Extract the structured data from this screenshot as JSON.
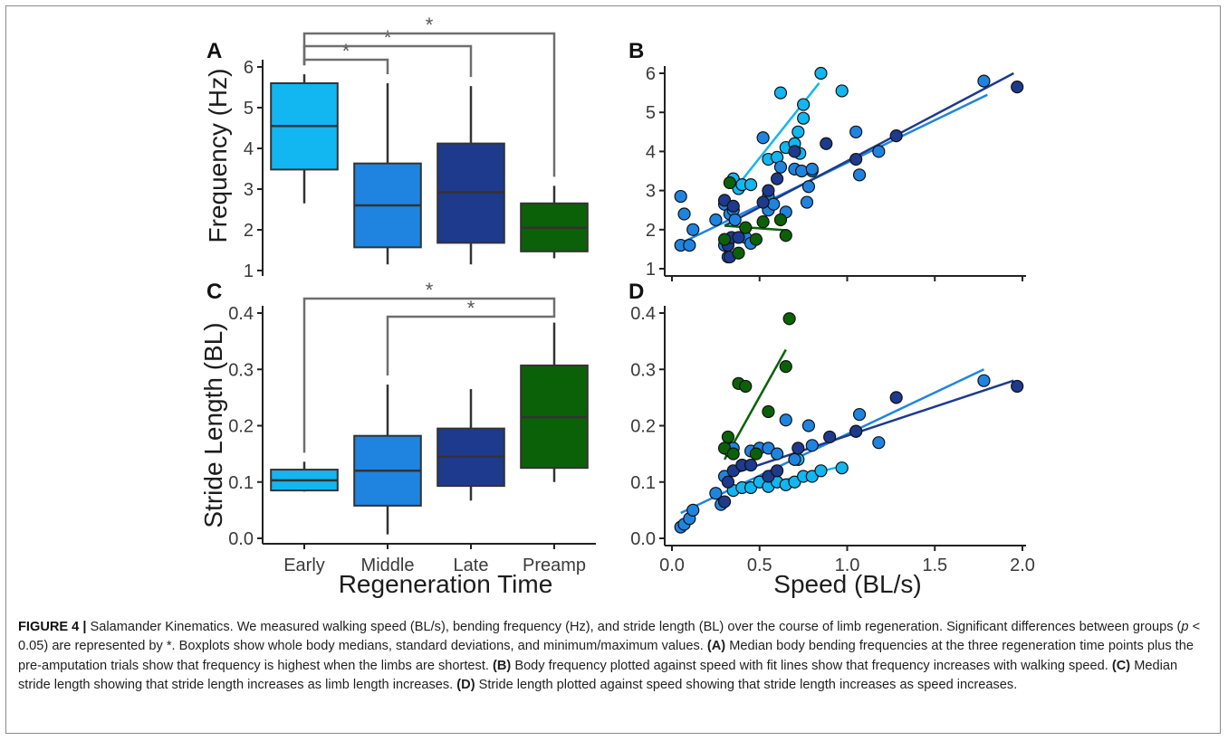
{
  "colors": {
    "early": "#12b6f0",
    "middle": "#1f84e0",
    "late": "#1d3a8c",
    "preamp": "#0b6108",
    "bracket": "#6e6e6e"
  },
  "figure": {
    "panels": {
      "a": "A",
      "b": "B",
      "c": "C",
      "d": "D"
    },
    "left_ylabel_top": "Frequency (Hz)",
    "left_ylabel_bottom": "Stride Length (BL)",
    "left_xlabel": "Regeneration Time",
    "right_xlabel": "Speed (BL/s)",
    "significance_marker": "*"
  },
  "caption": {
    "label": "FIGURE 4 |",
    "text_intro": "Salamander Kinematics. We measured walking speed (BL/s), bending frequency (Hz), and stride length (BL) over the course of limb regeneration. Significant differences between groups (",
    "text_p": "p",
    "text_sig": " < 0.05) are represented by *. Boxplots show whole body medians, standard deviations, and minimum/maximum values. ",
    "a_label": "(A)",
    "a_text": " Median body bending frequencies at the three regeneration time points plus the pre-amputation trials show that frequency is highest when the limbs are shortest. ",
    "b_label": "(B)",
    "b_text": " Body frequency plotted against speed with fit lines show that frequency increases with walking speed. ",
    "c_label": "(C)",
    "c_text": " Median stride length showing that stride length increases as limb length increases. ",
    "d_label": "(D)",
    "d_text": " Stride length plotted against speed showing that stride length increases as speed increases."
  },
  "chart_data": [
    {
      "panel": "A",
      "type": "box",
      "categories": [
        "Early",
        "Middle",
        "Late",
        "Preamp"
      ],
      "ylabel": "Frequency (Hz)",
      "ylim": [
        1,
        6
      ],
      "yticks": [
        "1",
        "2",
        "3",
        "4",
        "5",
        "6"
      ],
      "boxes": [
        {
          "name": "Early",
          "min": 2.65,
          "q1": 3.48,
          "median": 4.55,
          "q3": 5.6,
          "max": 5.82,
          "color": "#12b6f0"
        },
        {
          "name": "Middle",
          "min": 1.15,
          "q1": 1.57,
          "median": 2.6,
          "q3": 3.63,
          "max": 5.6,
          "color": "#1f84e0"
        },
        {
          "name": "Late",
          "min": 1.15,
          "q1": 1.68,
          "median": 2.92,
          "q3": 4.12,
          "max": 5.53,
          "color": "#1d3a8c"
        },
        {
          "name": "Preamp",
          "min": 1.3,
          "q1": 1.47,
          "median": 2.05,
          "q3": 2.65,
          "max": 3.08,
          "color": "#0b6108"
        }
      ],
      "significance": [
        {
          "from": "Early",
          "to": "Middle",
          "label": "*"
        },
        {
          "from": "Early",
          "to": "Late",
          "label": "*"
        },
        {
          "from": "Early",
          "to": "Preamp",
          "label": "*"
        }
      ]
    },
    {
      "panel": "C",
      "type": "box",
      "categories": [
        "Early",
        "Middle",
        "Late",
        "Preamp"
      ],
      "xlabel": "Regeneration Time",
      "ylabel": "Stride Length (BL)",
      "ylim": [
        0,
        0.4
      ],
      "yticks": [
        "0.0",
        "0.1",
        "0.2",
        "0.3",
        "0.4"
      ],
      "boxes": [
        {
          "name": "Early",
          "min": 0.083,
          "q1": 0.085,
          "median": 0.103,
          "q3": 0.122,
          "max": 0.136,
          "color": "#12b6f0"
        },
        {
          "name": "Middle",
          "min": 0.007,
          "q1": 0.058,
          "median": 0.12,
          "q3": 0.182,
          "max": 0.273,
          "color": "#1f84e0"
        },
        {
          "name": "Late",
          "min": 0.067,
          "q1": 0.093,
          "median": 0.145,
          "q3": 0.195,
          "max": 0.265,
          "color": "#1d3a8c"
        },
        {
          "name": "Preamp",
          "min": 0.1,
          "q1": 0.125,
          "median": 0.215,
          "q3": 0.307,
          "max": 0.383,
          "color": "#0b6108"
        }
      ],
      "significance": [
        {
          "from": "Early",
          "to": "Preamp",
          "label": "*"
        },
        {
          "from": "Middle",
          "to": "Preamp",
          "label": "*"
        }
      ]
    },
    {
      "panel": "B",
      "type": "scatter",
      "ylabel": "Frequency (Hz)",
      "xlim": [
        0,
        2
      ],
      "ylim": [
        1,
        6
      ],
      "yticks": [
        "1",
        "2",
        "3",
        "4",
        "5",
        "6"
      ],
      "series": [
        {
          "color": "#12b6f0",
          "points": [
            [
              0.35,
              3.3
            ],
            [
              0.38,
              3.05
            ],
            [
              0.4,
              3.15
            ],
            [
              0.45,
              3.15
            ],
            [
              0.55,
              3.8
            ],
            [
              0.6,
              3.85
            ],
            [
              0.62,
              5.5
            ],
            [
              0.65,
              4.1
            ],
            [
              0.7,
              4.2
            ],
            [
              0.72,
              4.5
            ],
            [
              0.73,
              3.95
            ],
            [
              0.75,
              5.2
            ],
            [
              0.75,
              4.85
            ],
            [
              0.8,
              3.5
            ],
            [
              0.85,
              6.0
            ],
            [
              0.97,
              5.55
            ]
          ],
          "fit": [
            [
              0.37,
              3.1
            ],
            [
              0.84,
              5.75
            ]
          ]
        },
        {
          "color": "#1f84e0",
          "points": [
            [
              0.05,
              2.85
            ],
            [
              0.05,
              1.6
            ],
            [
              0.07,
              2.4
            ],
            [
              0.1,
              1.6
            ],
            [
              0.12,
              2.0
            ],
            [
              0.25,
              2.25
            ],
            [
              0.3,
              1.6
            ],
            [
              0.3,
              2.65
            ],
            [
              0.32,
              1.3
            ],
            [
              0.33,
              2.4
            ],
            [
              0.35,
              2.5
            ],
            [
              0.36,
              2.25
            ],
            [
              0.42,
              1.8
            ],
            [
              0.45,
              1.65
            ],
            [
              0.52,
              4.35
            ],
            [
              0.55,
              2.85
            ],
            [
              0.55,
              2.5
            ],
            [
              0.58,
              2.65
            ],
            [
              0.62,
              3.6
            ],
            [
              0.65,
              2.45
            ],
            [
              0.7,
              3.55
            ],
            [
              0.74,
              3.5
            ],
            [
              0.77,
              2.7
            ],
            [
              0.78,
              3.1
            ],
            [
              0.8,
              3.55
            ],
            [
              1.05,
              4.5
            ],
            [
              1.07,
              3.4
            ],
            [
              1.18,
              4.0
            ],
            [
              1.78,
              5.8
            ]
          ],
          "fit": [
            [
              0.05,
              1.65
            ],
            [
              1.8,
              5.45
            ]
          ]
        },
        {
          "color": "#1d3a8c",
          "points": [
            [
              0.3,
              2.75
            ],
            [
              0.32,
              1.6
            ],
            [
              0.33,
              1.3
            ],
            [
              0.34,
              1.8
            ],
            [
              0.35,
              2.6
            ],
            [
              0.38,
              1.8
            ],
            [
              0.52,
              2.7
            ],
            [
              0.55,
              3.0
            ],
            [
              0.6,
              3.3
            ],
            [
              0.7,
              4.0
            ],
            [
              0.88,
              4.2
            ],
            [
              1.05,
              3.8
            ],
            [
              1.28,
              4.4
            ],
            [
              1.97,
              5.65
            ]
          ],
          "fit": [
            [
              0.3,
              2.1
            ],
            [
              1.95,
              6.0
            ]
          ]
        },
        {
          "color": "#0b6108",
          "points": [
            [
              0.3,
              1.75
            ],
            [
              0.33,
              3.2
            ],
            [
              0.38,
              1.4
            ],
            [
              0.42,
              2.05
            ],
            [
              0.48,
              1.75
            ],
            [
              0.52,
              2.2
            ],
            [
              0.62,
              2.25
            ],
            [
              0.65,
              1.85
            ]
          ],
          "fit": [
            [
              0.3,
              2.1
            ],
            [
              0.66,
              1.98
            ]
          ]
        }
      ]
    },
    {
      "panel": "D",
      "type": "scatter",
      "xlabel": "Speed (BL/s)",
      "ylabel": "Stride Length (BL)",
      "xlim": [
        0,
        2
      ],
      "ylim": [
        0,
        0.4
      ],
      "xticks": [
        "0.0",
        "0.5",
        "1.0",
        "1.5",
        "2.0"
      ],
      "yticks": [
        "0.0",
        "0.1",
        "0.2",
        "0.3",
        "0.4"
      ],
      "series": [
        {
          "color": "#12b6f0",
          "points": [
            [
              0.35,
              0.085
            ],
            [
              0.4,
              0.09
            ],
            [
              0.45,
              0.09
            ],
            [
              0.5,
              0.1
            ],
            [
              0.55,
              0.092
            ],
            [
              0.6,
              0.1
            ],
            [
              0.65,
              0.095
            ],
            [
              0.7,
              0.1
            ],
            [
              0.72,
              0.14
            ],
            [
              0.75,
              0.11
            ],
            [
              0.8,
              0.11
            ],
            [
              0.85,
              0.12
            ],
            [
              0.97,
              0.125
            ]
          ],
          "fit": [
            [
              0.32,
              0.08
            ],
            [
              0.97,
              0.128
            ]
          ]
        },
        {
          "color": "#1f84e0",
          "points": [
            [
              0.05,
              0.02
            ],
            [
              0.07,
              0.025
            ],
            [
              0.1,
              0.035
            ],
            [
              0.12,
              0.05
            ],
            [
              0.25,
              0.08
            ],
            [
              0.28,
              0.06
            ],
            [
              0.3,
              0.11
            ],
            [
              0.33,
              0.155
            ],
            [
              0.35,
              0.16
            ],
            [
              0.4,
              0.13
            ],
            [
              0.45,
              0.155
            ],
            [
              0.5,
              0.16
            ],
            [
              0.55,
              0.16
            ],
            [
              0.6,
              0.15
            ],
            [
              0.65,
              0.21
            ],
            [
              0.7,
              0.14
            ],
            [
              0.78,
              0.2
            ],
            [
              0.8,
              0.165
            ],
            [
              1.05,
              0.19
            ],
            [
              1.07,
              0.22
            ],
            [
              1.18,
              0.17
            ],
            [
              1.78,
              0.28
            ]
          ],
          "fit": [
            [
              0.05,
              0.045
            ],
            [
              1.78,
              0.3
            ]
          ]
        },
        {
          "color": "#1d3a8c",
          "points": [
            [
              0.3,
              0.065
            ],
            [
              0.32,
              0.1
            ],
            [
              0.35,
              0.12
            ],
            [
              0.4,
              0.13
            ],
            [
              0.45,
              0.13
            ],
            [
              0.55,
              0.11
            ],
            [
              0.6,
              0.12
            ],
            [
              0.72,
              0.16
            ],
            [
              0.9,
              0.18
            ],
            [
              1.05,
              0.19
            ],
            [
              1.28,
              0.25
            ],
            [
              1.97,
              0.27
            ]
          ],
          "fit": [
            [
              0.3,
              0.11
            ],
            [
              1.95,
              0.28
            ]
          ]
        },
        {
          "color": "#0b6108",
          "points": [
            [
              0.3,
              0.16
            ],
            [
              0.32,
              0.18
            ],
            [
              0.35,
              0.15
            ],
            [
              0.38,
              0.275
            ],
            [
              0.42,
              0.27
            ],
            [
              0.48,
              0.15
            ],
            [
              0.55,
              0.225
            ],
            [
              0.65,
              0.305
            ],
            [
              0.67,
              0.39
            ]
          ],
          "fit": [
            [
              0.3,
              0.14
            ],
            [
              0.65,
              0.335
            ]
          ]
        }
      ]
    }
  ]
}
